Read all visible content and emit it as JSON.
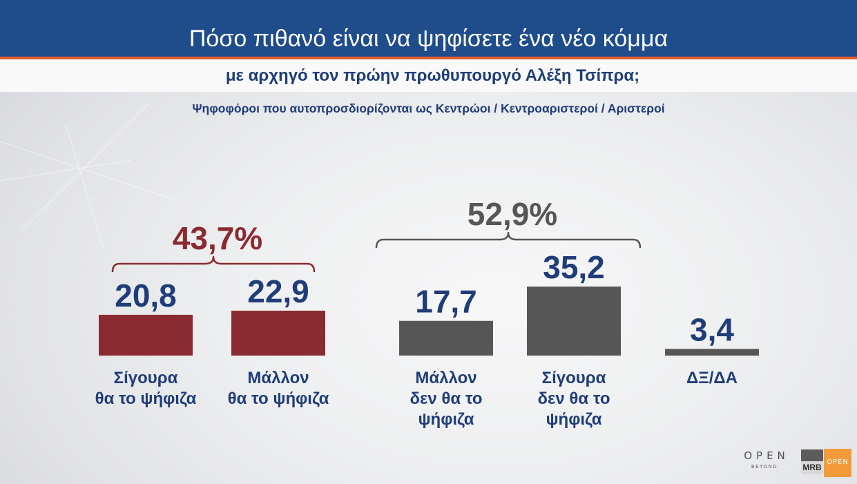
{
  "colors": {
    "header_blue": "#1f4c8b",
    "accent_line": "#e35a2c",
    "text_navy": "#1f3d78"
  },
  "chart_data": {
    "type": "bar",
    "title": "Πόσο πιθανό είναι να ψηφίσετε ένα νέο κόμμα",
    "subtitle": "με αρχηγό τον πρώην πρωθυπουργό Αλέξη Τσίπρα;",
    "note": "Ψηφοφόροι που αυτοπροσδιορίζονται ως Κεντρώοι / Κεντροαριστεροί / Αριστεροί",
    "categories": [
      "Σίγουρα\nθα το ψήφιζα",
      "Μάλλον\nθα το ψήφιζα",
      "Μάλλον\nδεν θα το\nψήφιζα",
      "Σίγουρα\nδεν θα το\nψήφιζα",
      "ΔΞ/ΔΑ"
    ],
    "values": [
      20.8,
      22.9,
      17.7,
      35.2,
      3.4
    ],
    "value_labels": [
      "20,8",
      "22,9",
      "17,7",
      "35,2",
      "3,4"
    ],
    "bar_colors": [
      "#8a2b31",
      "#8a2b31",
      "#565656",
      "#565656",
      "#565656"
    ],
    "groups": [
      {
        "label": "43,7%",
        "value": 43.7,
        "members": [
          0,
          1
        ],
        "color": "#8a2b31"
      },
      {
        "label": "52,9%",
        "value": 52.9,
        "members": [
          2,
          3
        ],
        "color": "#565656"
      }
    ],
    "grid": false
  },
  "logos": {
    "open_wordmark": "OPEN",
    "open_tagline": "BEYOND",
    "mrb": "MRB",
    "open_badge": "OPEN"
  }
}
